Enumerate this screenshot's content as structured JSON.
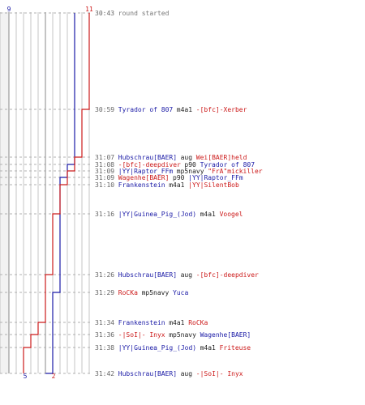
{
  "chart_data": {
    "type": "line",
    "team_colors": {
      "blue": "#1a1aa6",
      "red": "#cc1a1a",
      "neutral": "#777777"
    },
    "start_counts": {
      "blue": "9",
      "red": "11"
    },
    "end_counts": {
      "blue": "5",
      "red": "2"
    },
    "events": [
      {
        "time": "30:43",
        "blue": 9,
        "red": 11,
        "killer": "round started",
        "killer_team": "neutral",
        "weapon": "",
        "victim": "",
        "victim_team": ""
      },
      {
        "time": "30:59",
        "blue": 9,
        "red": 10,
        "killer": "Tyrador of 807",
        "killer_team": "blue",
        "weapon": "m4a1",
        "victim": "-[bfc]-Xerber",
        "victim_team": "red"
      },
      {
        "time": "31:07",
        "blue": 9,
        "red": 9,
        "killer": "Hubschrau[BAER]",
        "killer_team": "blue",
        "weapon": "aug",
        "victim": "Wei[BAER]held",
        "victim_team": "red"
      },
      {
        "time": "31:08",
        "blue": 8,
        "red": 9,
        "killer": "-[bfc]-deepdiver",
        "killer_team": "red",
        "weapon": "p90",
        "victim": "Tyrador of 807",
        "victim_team": "blue"
      },
      {
        "time": "31:09",
        "blue": 8,
        "red": 8,
        "killer": "|YY|Raptor_FFm",
        "killer_team": "blue",
        "weapon": "mp5navy",
        "victim": "\"FrA\"mickiller",
        "victim_team": "red"
      },
      {
        "time": "31:09",
        "blue": 7,
        "red": 8,
        "killer": "Wagenhe[BAER]",
        "killer_team": "red",
        "weapon": "p90",
        "victim": "|YY|Raptor_FFm",
        "victim_team": "blue"
      },
      {
        "time": "31:10",
        "blue": 7,
        "red": 7,
        "killer": "Frankenstein",
        "killer_team": "blue",
        "weapon": "m4a1",
        "victim": "|YY|SilentBob",
        "victim_team": "red"
      },
      {
        "time": "31:16",
        "blue": 7,
        "red": 6,
        "killer": "|YY|Guinea_Pig_(Jod)",
        "killer_team": "blue",
        "weapon": "m4a1",
        "victim": "Voogel",
        "victim_team": "red"
      },
      {
        "time": "31:26",
        "blue": 7,
        "red": 5,
        "killer": "Hubschrau[BAER]",
        "killer_team": "blue",
        "weapon": "aug",
        "victim": "-[bfc]-deepdiver",
        "victim_team": "red"
      },
      {
        "time": "31:29",
        "blue": 6,
        "red": 5,
        "killer": "RoCKa",
        "killer_team": "red",
        "weapon": "mp5navy",
        "victim": "Yuca",
        "victim_team": "blue"
      },
      {
        "time": "31:34",
        "blue": 6,
        "red": 4,
        "killer": "Frankenstein",
        "killer_team": "blue",
        "weapon": "m4a1",
        "victim": "RoCKa",
        "victim_team": "red"
      },
      {
        "time": "31:36",
        "blue": 6,
        "red": 3,
        "killer": "-|SoI|- Inyx",
        "killer_team": "red",
        "weapon": "mp5navy",
        "victim": "Wagenhe[BAER]",
        "victim_team": "blue"
      },
      {
        "time": "31:38",
        "blue": 6,
        "red": 2,
        "killer": "|YY|Guinea_Pig_(Jod)",
        "killer_team": "blue",
        "weapon": "m4a1",
        "victim": "Friteuse",
        "victim_team": "red"
      },
      {
        "time": "31:42",
        "blue": 5,
        "red": 2,
        "killer": "Hubschrau[BAER]",
        "killer_team": "blue",
        "weapon": "aug",
        "victim": "-|SoI|- Inyx",
        "victim_team": "red"
      }
    ],
    "xlim": [
      0,
      11
    ]
  }
}
